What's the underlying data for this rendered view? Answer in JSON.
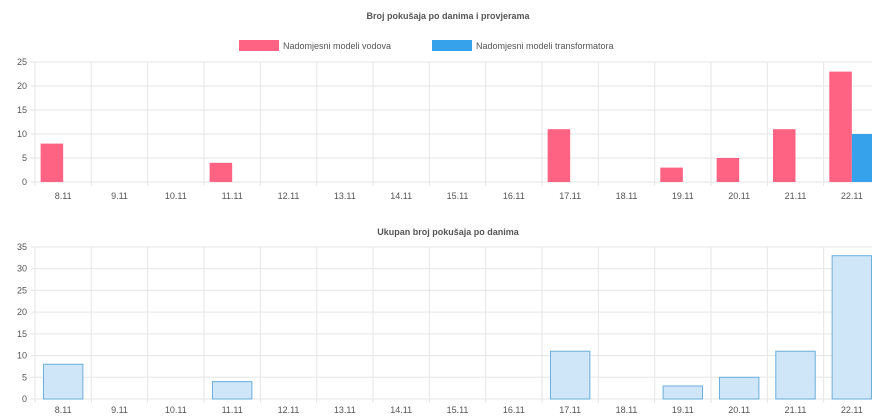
{
  "chart_data": [
    {
      "type": "bar",
      "title": "Broj pokušaja po danima i provjerama",
      "categories": [
        "8.11",
        "9.11",
        "10.11",
        "11.11",
        "12.11",
        "13.11",
        "14.11",
        "15.11",
        "16.11",
        "17.11",
        "18.11",
        "19.11",
        "20.11",
        "21.11",
        "22.11"
      ],
      "series": [
        {
          "name": "Nadomjesni modeli vodova",
          "color": "#ff6384",
          "values": [
            8,
            0,
            0,
            4,
            0,
            0,
            0,
            0,
            0,
            11,
            0,
            3,
            5,
            11,
            23
          ]
        },
        {
          "name": "Nadomjesni modeli transformatora",
          "color": "#36a2eb",
          "values": [
            0,
            0,
            0,
            0,
            0,
            0,
            0,
            0,
            0,
            0,
            0,
            0,
            0,
            0,
            10
          ]
        }
      ],
      "yticks": [
        "0",
        "5",
        "10",
        "15",
        "20",
        "25"
      ],
      "ylim": [
        0,
        25
      ],
      "grid": true,
      "legend": "top-center"
    },
    {
      "type": "bar",
      "title": "Ukupan broj pokušaja po danima",
      "categories": [
        "8.11",
        "9.11",
        "10.11",
        "11.11",
        "12.11",
        "13.11",
        "14.11",
        "15.11",
        "16.11",
        "17.11",
        "18.11",
        "19.11",
        "20.11",
        "21.11",
        "22.11"
      ],
      "series": [
        {
          "color": "#cfe5f8",
          "border": "#6aaedb",
          "values": [
            8,
            0,
            0,
            4,
            0,
            0,
            0,
            0,
            0,
            11,
            0,
            3,
            5,
            11,
            33
          ]
        }
      ],
      "yticks": [
        "0",
        "5",
        "10",
        "15",
        "20",
        "25",
        "30",
        "35"
      ],
      "ylim": [
        0,
        35
      ],
      "grid": true,
      "legend": "none"
    }
  ]
}
